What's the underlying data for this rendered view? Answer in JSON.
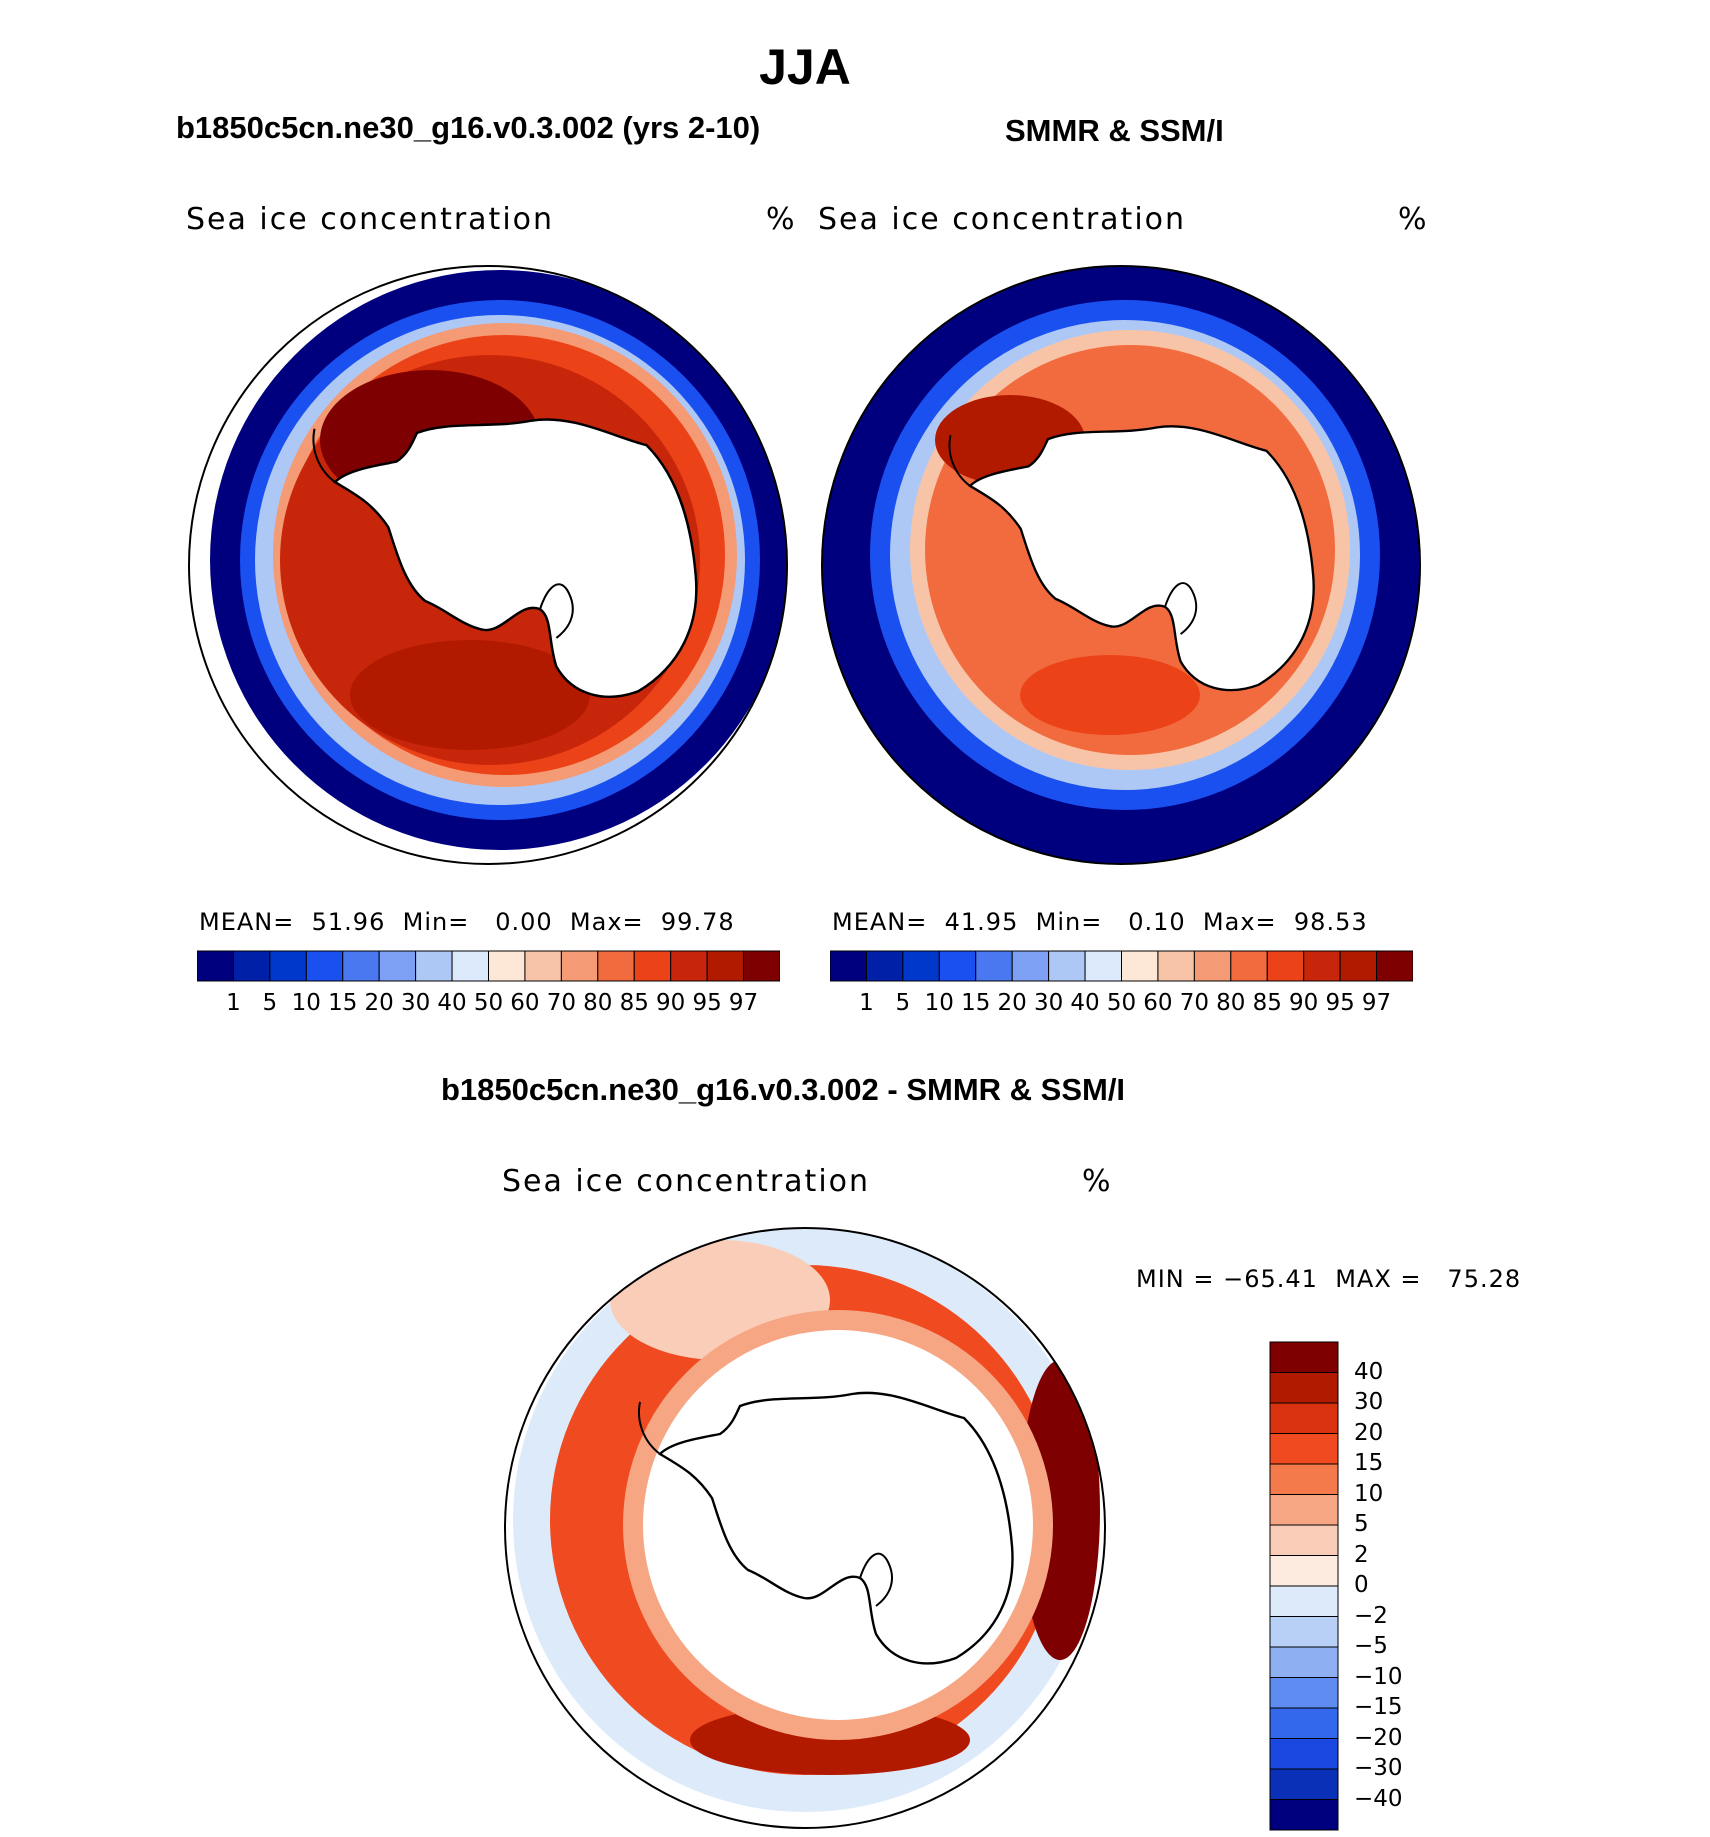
{
  "figure": {
    "title": "JJA",
    "left_panel_title": "b1850c5cn.ne30_g16.v0.3.002 (yrs 2-10)",
    "right_panel_title": "SMMR & SSM/I",
    "diff_panel_title": "b1850c5cn.ne30_g16.v0.3.002 - SMMR & SSM/I"
  },
  "chart_data": [
    {
      "type": "heatmap",
      "id": "model",
      "projection": "south-polar-stereographic",
      "variable_label": "Sea ice concentration",
      "units": "%",
      "stats": {
        "mean_label": "MEAN=",
        "mean": "51.96",
        "min_label": "Min=",
        "min": "0.00",
        "max_label": "Max=",
        "max": "99.78"
      },
      "colorbar": {
        "levels": [
          "1",
          "5",
          "10",
          "15",
          "20",
          "30",
          "40",
          "50",
          "60",
          "70",
          "80",
          "85",
          "90",
          "95",
          "97"
        ],
        "colors": [
          "#00007f",
          "#0020a8",
          "#0038cc",
          "#1a50f0",
          "#4a78f0",
          "#7ea0f4",
          "#aec8f6",
          "#dce9fb",
          "#fde8d8",
          "#f8c4a8",
          "#f49a74",
          "#f26b3e",
          "#ec4218",
          "#c8260a",
          "#b21a00",
          "#7f0000"
        ]
      }
    },
    {
      "type": "heatmap",
      "id": "obs",
      "projection": "south-polar-stereographic",
      "variable_label": "Sea ice concentration",
      "units": "%",
      "stats": {
        "mean_label": "MEAN=",
        "mean": "41.95",
        "min_label": "Min=",
        "min": "0.10",
        "max_label": "Max=",
        "max": "98.53"
      },
      "colorbar": {
        "levels": [
          "1",
          "5",
          "10",
          "15",
          "20",
          "30",
          "40",
          "50",
          "60",
          "70",
          "80",
          "85",
          "90",
          "95",
          "97"
        ],
        "colors": [
          "#00007f",
          "#0020a8",
          "#0038cc",
          "#1a50f0",
          "#4a78f0",
          "#7ea0f4",
          "#aec8f6",
          "#dce9fb",
          "#fde8d8",
          "#f8c4a8",
          "#f49a74",
          "#f26b3e",
          "#ec4218",
          "#c8260a",
          "#b21a00",
          "#7f0000"
        ]
      }
    },
    {
      "type": "heatmap",
      "id": "diff",
      "projection": "south-polar-stereographic",
      "variable_label": "Sea ice concentration",
      "units": "%",
      "stats": {
        "min_label": "MIN =",
        "min": "−65.41",
        "max_label": "MAX =",
        "max": "75.28"
      },
      "colorbar": {
        "levels": [
          "40",
          "30",
          "20",
          "15",
          "10",
          "5",
          "2",
          "0",
          "−2",
          "−5",
          "−10",
          "−15",
          "−20",
          "−30",
          "−40"
        ],
        "colors": [
          "#7f0000",
          "#b21a00",
          "#d83210",
          "#f04a20",
          "#f47a4c",
          "#f7a684",
          "#f9cdb8",
          "#fdebe0",
          "#dceafa",
          "#b8d0f6",
          "#8eb0f2",
          "#5e8cf0",
          "#3468ec",
          "#1a48e0",
          "#0a30b8",
          "#00007f"
        ]
      }
    }
  ]
}
